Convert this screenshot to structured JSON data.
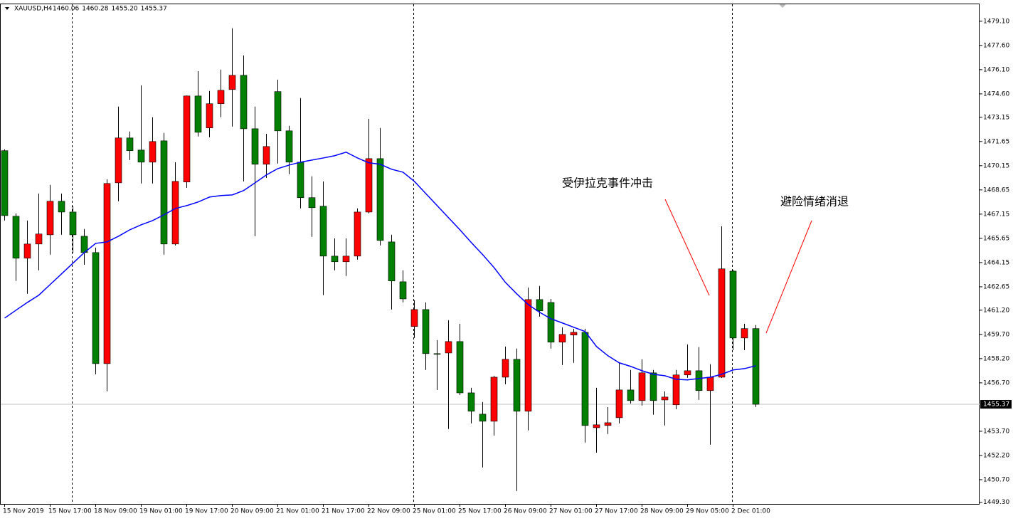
{
  "chart_data": {
    "type": "candlestick",
    "title": "XAUUSD,H4",
    "header_labels": [
      "1460.06",
      "1460.28",
      "1455.20",
      "1455.37"
    ],
    "categories": [
      "15 Nov 2019",
      null,
      null,
      null,
      "15 Nov 17:00",
      null,
      null,
      null,
      "18 Nov 09:00",
      null,
      null,
      null,
      "19 Nov 01:00",
      null,
      null,
      null,
      "19 Nov 17:00",
      null,
      null,
      null,
      "20 Nov 09:00",
      null,
      null,
      null,
      "21 Nov 01:00",
      null,
      null,
      null,
      "21 Nov 17:00",
      null,
      null,
      null,
      "22 Nov 09:00",
      null,
      null,
      null,
      "25 Nov 01:00",
      null,
      null,
      null,
      "25 Nov 17:00",
      null,
      null,
      null,
      "26 Nov 09:00",
      null,
      null,
      null,
      "27 Nov 01:00",
      null,
      null,
      null,
      "27 Nov 17:00",
      null,
      null,
      null,
      "28 Nov 09:00",
      null,
      null,
      null,
      "29 Nov 05:00",
      null,
      null,
      null,
      "2 Dec 01:00",
      null,
      null
    ],
    "open": [
      1471.08,
      1467.02,
      1464.42,
      1465.3,
      1465.87,
      1467.95,
      1467.28,
      1465.78,
      1464.77,
      1457.89,
      1469.09,
      1471.87,
      1471.12,
      1470.37,
      1471.69,
      1465.3,
      1469.14,
      1474.47,
      1472.49,
      1473.99,
      1474.87,
      1475.75,
      1472.44,
      1470.24,
      1474.74,
      1472.31,
      1470.37,
      1468.17,
      1467.64,
      1464.55,
      1464.2,
      1464.55,
      1467.28,
      1470.59,
      1465.43,
      1462.96,
      1460.19,
      1461.24,
      1458.51,
      1458.55,
      1459.26,
      1456.08,
      1454.76,
      1454.32,
      1457.05,
      1458.16,
      1454.94,
      1461.86,
      1461.68,
      1459.22,
      1459.66,
      1459.83,
      1453.92,
      1454.06,
      1454.54,
      1456.26,
      1455.6,
      1457.32,
      1455.64,
      1455.34,
      1457.19,
      1457.45,
      1456.22,
      1457.05,
      1463.62,
      1459.48,
      1460.06
    ],
    "high": [
      1471.16,
      1467.2,
      1466.75,
      1468.43,
      1468.96,
      1468.43,
      1467.64,
      1466.23,
      1465.08,
      1469.31,
      1473.81,
      1472.27,
      1475.13,
      1473.15,
      1472.18,
      1470.37,
      1474.5,
      1476.01,
      1474.78,
      1476.1,
      1478.66,
      1476.98,
      1473.81,
      1472.13,
      1475.48,
      1472.62,
      1474.34,
      1469.49,
      1469.18,
      1465.65,
      1465.65,
      1467.5,
      1473.06,
      1472.49,
      1465.87,
      1463.67,
      1461.82,
      1461.68,
      1459.35,
      1460.58,
      1460.36,
      1456.39,
      1455.51,
      1457.14,
      1458.95,
      1458.82,
      1462.61,
      1462.7,
      1461.9,
      1460.14,
      1460.05,
      1460.05,
      1456.39,
      1455.2,
      1457.94,
      1457.5,
      1458.16,
      1457.5,
      1456.17,
      1457.5,
      1459.08,
      1458.91,
      1457.85,
      1466.4,
      1463.7,
      1460.36,
      1460.28
    ],
    "low": [
      1466.75,
      1463.01,
      1462.21,
      1463.67,
      1464.64,
      1465.87,
      1464.77,
      1464.02,
      1457.23,
      1456.17,
      1467.95,
      1470.5,
      1469.05,
      1469.05,
      1464.64,
      1465.21,
      1468.78,
      1471.96,
      1471.91,
      1473.15,
      1472.57,
      1469.18,
      1465.78,
      1469.4,
      1470.28,
      1469.62,
      1467.5,
      1465.74,
      1462.13,
      1463.67,
      1463.32,
      1464.33,
      1467.2,
      1465.21,
      1461.24,
      1461.68,
      1459.48,
      1457.5,
      1456.26,
      1453.84,
      1455.95,
      1454.19,
      1451.46,
      1453.44,
      1456.61,
      1450.0,
      1453.75,
      1460.8,
      1458.82,
      1457.8,
      1457.94,
      1453.0,
      1452.38,
      1453.53,
      1454.19,
      1455.42,
      1455.29,
      1454.72,
      1454.06,
      1455.07,
      1457.01,
      1455.64,
      1452.87,
      1457.0,
      1458.73,
      1458.73,
      1455.2
    ],
    "close": [
      1467.06,
      1464.42,
      1465.3,
      1465.92,
      1467.95,
      1467.28,
      1465.87,
      1464.77,
      1457.89,
      1469.05,
      1471.87,
      1471.08,
      1470.37,
      1471.65,
      1465.3,
      1469.18,
      1474.47,
      1472.22,
      1473.99,
      1474.82,
      1475.75,
      1472.44,
      1470.24,
      1471.34,
      1472.31,
      1470.37,
      1468.17,
      1467.55,
      1464.55,
      1464.2,
      1464.55,
      1467.28,
      1470.59,
      1465.52,
      1463.01,
      1461.9,
      1461.24,
      1458.51,
      1458.47,
      1459.26,
      1456.08,
      1454.94,
      1454.32,
      1457.05,
      1458.16,
      1454.94,
      1461.86,
      1461.16,
      1459.22,
      1459.7,
      1459.83,
      1454.06,
      1454.1,
      1454.23,
      1456.26,
      1455.6,
      1457.32,
      1455.6,
      1455.82,
      1457.19,
      1457.45,
      1456.22,
      1457.05,
      1463.76,
      1459.48,
      1460.06,
      1455.37
    ],
    "up_color": "#ff0000",
    "down_color": "#008000",
    "ma": {
      "color": "#0000ff",
      "values": [
        1460.71,
        1461.2,
        1461.68,
        1462.13,
        1462.79,
        1463.45,
        1464.11,
        1464.77,
        1465.34,
        1465.43,
        1465.78,
        1466.18,
        1466.49,
        1466.75,
        1467.11,
        1467.5,
        1467.68,
        1467.9,
        1468.21,
        1468.3,
        1468.34,
        1468.61,
        1469.09,
        1469.58,
        1469.97,
        1470.19,
        1470.37,
        1470.5,
        1470.63,
        1470.77,
        1470.99,
        1470.63,
        1470.33,
        1470.24,
        1469.93,
        1469.75,
        1469.18,
        1468.43,
        1467.68,
        1466.93,
        1466.18,
        1465.39,
        1464.64,
        1463.84,
        1462.92,
        1462.21,
        1461.55,
        1461.07,
        1460.67,
        1460.41,
        1460.14,
        1459.88,
        1458.95,
        1458.38,
        1457.94,
        1457.72,
        1457.45,
        1457.23,
        1457.14,
        1456.92,
        1456.88,
        1456.97,
        1457.05,
        1457.23,
        1457.5,
        1457.58,
        1457.76
      ]
    },
    "last_price": {
      "value": 1455.37,
      "label": "1455.37"
    },
    "ylim": [
      1449.2,
      1480.15
    ],
    "yticks": [
      {
        "value": 1479.1,
        "label": "1479.10"
      },
      {
        "value": 1477.6,
        "label": "1477.60"
      },
      {
        "value": 1476.1,
        "label": "1476.10"
      },
      {
        "value": 1474.6,
        "label": "1474.60"
      },
      {
        "value": 1473.15,
        "label": "1473.15"
      },
      {
        "value": 1471.65,
        "label": "1471.65"
      },
      {
        "value": 1470.15,
        "label": "1470.15"
      },
      {
        "value": 1468.65,
        "label": "1468.65"
      },
      {
        "value": 1467.15,
        "label": "1467.15"
      },
      {
        "value": 1465.65,
        "label": "1465.65"
      },
      {
        "value": 1464.15,
        "label": "1464.15"
      },
      {
        "value": 1462.65,
        "label": "1462.65"
      },
      {
        "value": 1461.2,
        "label": "1461.20"
      },
      {
        "value": 1459.7,
        "label": "1459.70"
      },
      {
        "value": 1458.2,
        "label": "1458.20"
      },
      {
        "value": 1456.7,
        "label": "1456.70"
      },
      {
        "value": 1453.7,
        "label": "1453.70"
      },
      {
        "value": 1452.2,
        "label": "1452.20"
      },
      {
        "value": 1450.7,
        "label": "1450.70"
      },
      {
        "value": 1449.3,
        "label": "1449.30"
      }
    ],
    "annotations": [
      "受伊拉克事件冲击",
      "避险情绪消退"
    ]
  }
}
